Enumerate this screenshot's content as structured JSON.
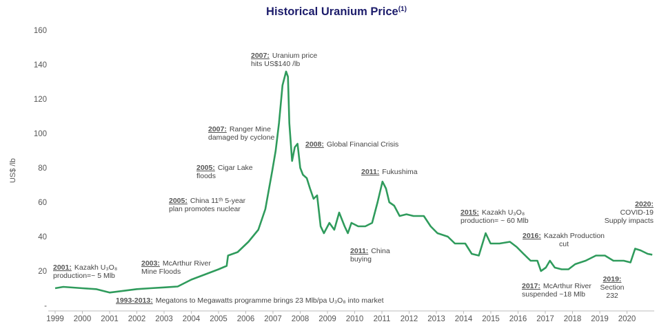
{
  "chart_data": {
    "type": "line",
    "title": "Historical Uranium Price",
    "title_note": "(1)",
    "ylabel": "US$ /lb",
    "color": "#2f9b5c",
    "xlim": [
      1999,
      2021
    ],
    "xticks": [
      1999,
      2000,
      2001,
      2002,
      2003,
      2004,
      2005,
      2006,
      2007,
      2008,
      2009,
      2010,
      2011,
      2012,
      2013,
      2014,
      2015,
      2016,
      2017,
      2018,
      2019,
      2020
    ],
    "ylim": [
      0,
      160
    ],
    "yticks": [
      {
        "value": 0,
        "label": "-"
      },
      20,
      40,
      60,
      80,
      100,
      120,
      140,
      160
    ],
    "x": [
      1999.0,
      1999.3,
      2000.0,
      2000.5,
      2001.0,
      2001.5,
      2002.0,
      2002.5,
      2003.0,
      2003.5,
      2004.0,
      2004.5,
      2005.0,
      2005.3,
      2005.35,
      2005.7,
      2006.1,
      2006.46,
      2006.72,
      2006.97,
      2007.1,
      2007.22,
      2007.35,
      2007.48,
      2007.55,
      2007.6,
      2007.7,
      2007.8,
      2007.9,
      2008.0,
      2008.1,
      2008.24,
      2008.36,
      2008.49,
      2008.62,
      2008.75,
      2008.87,
      2009.07,
      2009.25,
      2009.43,
      2009.63,
      2009.75,
      2009.88,
      2010.13,
      2010.39,
      2010.64,
      2010.84,
      2011.02,
      2011.15,
      2011.27,
      2011.45,
      2011.65,
      2011.9,
      2012.16,
      2012.54,
      2012.79,
      2013.04,
      2013.42,
      2013.68,
      2014.06,
      2014.3,
      2014.56,
      2014.81,
      2014.99,
      2015.32,
      2015.7,
      2015.95,
      2016.2,
      2016.46,
      2016.71,
      2016.84,
      2017.02,
      2017.17,
      2017.35,
      2017.6,
      2017.85,
      2018.1,
      2018.48,
      2018.86,
      2019.19,
      2019.5,
      2019.88,
      2020.13,
      2020.3,
      2020.5,
      2020.76,
      2020.93
    ],
    "values": [
      10,
      10.8,
      10,
      9.5,
      7.5,
      8.5,
      9.5,
      10,
      10.5,
      11,
      15,
      18,
      21,
      23,
      29,
      31,
      37,
      44,
      56,
      78,
      90,
      106,
      128,
      136,
      133,
      106,
      84,
      92,
      94,
      80,
      76,
      74,
      68,
      62,
      64,
      46,
      42,
      48,
      44,
      54,
      46,
      42,
      48,
      46,
      46,
      48,
      60,
      72,
      68,
      60,
      58,
      52,
      53,
      52,
      52,
      46,
      42,
      40,
      36,
      36,
      30,
      29,
      42,
      36,
      36,
      37,
      34,
      30,
      26,
      26,
      20,
      22,
      26,
      22,
      21,
      21,
      24,
      26,
      29,
      29,
      26,
      26,
      25,
      33,
      32,
      30,
      29.5
    ],
    "annotations": [
      {
        "label": "2007:",
        "lines": [
          "Uranium price",
          "hits US$140 /lb"
        ]
      },
      {
        "label": "2007:",
        "lines": [
          "Ranger Mine",
          "damaged by cyclone"
        ]
      },
      {
        "label": "2008:",
        "lines": [
          "Global Financial Crisis"
        ]
      },
      {
        "label": "2005:",
        "lines": [
          "Cigar Lake",
          "floods"
        ]
      },
      {
        "label": "2011:",
        "lines": [
          "Fukushima"
        ]
      },
      {
        "label": "2005:",
        "lines": [
          "China 11ᵗʰ 5-year",
          "plan promotes nuclear"
        ]
      },
      {
        "label": "2015:",
        "lines": [
          "Kazakh U₃O₈",
          "production= ~ 60 Mlb"
        ]
      },
      {
        "label": "2020:",
        "lines": [
          "COVID-19",
          "Supply impacts"
        ]
      },
      {
        "label": "2016:",
        "lines": [
          "Kazakh Production",
          "cut"
        ]
      },
      {
        "label": "2011:",
        "lines": [
          "China",
          "buying"
        ]
      },
      {
        "label": "2001:",
        "lines": [
          "Kazakh U₃O₈",
          "production=~ 5 Mlb"
        ]
      },
      {
        "label": "2003:",
        "lines": [
          "McArthur River",
          "Mine Floods"
        ]
      },
      {
        "label": "2017:",
        "lines": [
          "McArthur River",
          "suspended ~18 Mlb"
        ]
      },
      {
        "label": "2019:",
        "lines": [
          "Section",
          "232"
        ]
      },
      {
        "label": "1993-2013:",
        "lines": [
          "Megatons to Megawatts programme brings 23 Mlb/pa U₃O₈ into market"
        ]
      }
    ]
  }
}
